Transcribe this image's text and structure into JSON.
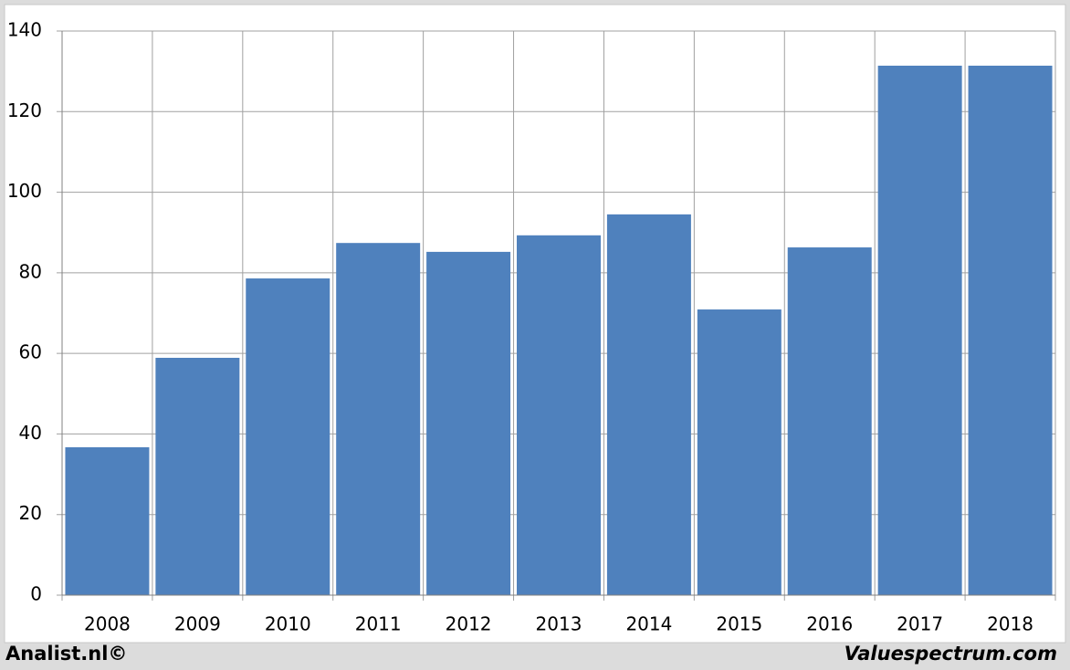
{
  "chart_data": {
    "type": "bar",
    "categories": [
      "2008",
      "2009",
      "2010",
      "2011",
      "2012",
      "2013",
      "2014",
      "2015",
      "2016",
      "2017",
      "2018"
    ],
    "values": [
      36.7,
      58.9,
      78.6,
      87.4,
      85.2,
      89.3,
      94.5,
      70.9,
      86.3,
      131.4,
      131.4
    ],
    "color": "#4f81bd",
    "ylim": [
      0,
      140
    ],
    "yticks": [
      0,
      20,
      40,
      60,
      80,
      100,
      120,
      140
    ],
    "grid": true
  },
  "footer": {
    "left": "Analist.nl©",
    "right": "Valuespectrum.com"
  }
}
